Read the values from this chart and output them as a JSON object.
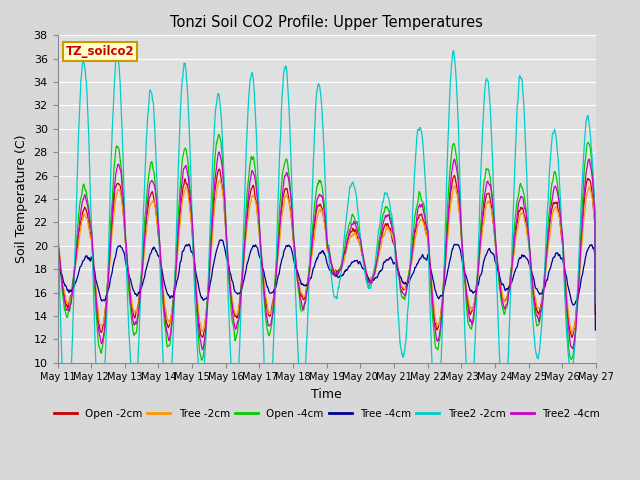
{
  "title": "Tonzi Soil CO2 Profile: Upper Temperatures",
  "xlabel": "Time",
  "ylabel": "Soil Temperature (C)",
  "ylim": [
    10,
    38
  ],
  "yticks": [
    10,
    12,
    14,
    16,
    18,
    20,
    22,
    24,
    26,
    28,
    30,
    32,
    34,
    36,
    38
  ],
  "series_order": [
    "Open -2cm",
    "Tree -2cm",
    "Open -4cm",
    "Tree -4cm",
    "Tree2 -2cm",
    "Tree2 -4cm"
  ],
  "series_colors": [
    "#cc0000",
    "#ff9900",
    "#00cc00",
    "#000099",
    "#00cccc",
    "#cc00cc"
  ],
  "legend_label": "TZ_soilco2",
  "bg_color": "#d8d8d8",
  "plot_bg": "#e0e0e0",
  "grid_color": "#ffffff",
  "n_days": 16,
  "points_per_day": 72,
  "start_day": 11
}
